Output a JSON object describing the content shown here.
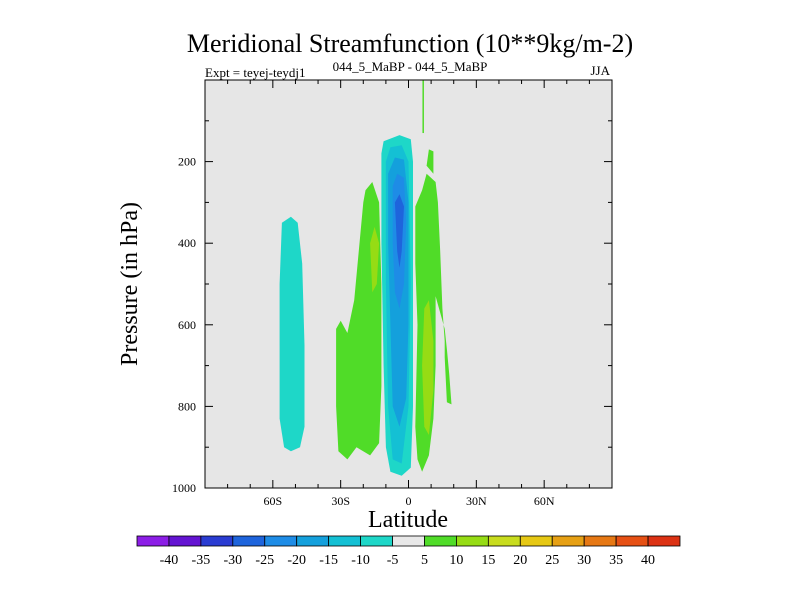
{
  "chart_data": {
    "type": "heatmap",
    "title": "Meridional Streamfunction (10**9kg/m-2)",
    "subtitle_left": "Expt = teyej-teydj1",
    "subtitle_center": "044_5_MaBP - 044_5_MaBP",
    "subtitle_right": "JJA",
    "xlabel": "Latitude",
    "ylabel": "Pressure (in hPa)",
    "xlim": [
      -90,
      90
    ],
    "ylim": [
      1000,
      0
    ],
    "xticks": [
      {
        "value": -60,
        "label": "60S"
      },
      {
        "value": -30,
        "label": "30S"
      },
      {
        "value": 0,
        "label": "0"
      },
      {
        "value": 30,
        "label": "30N"
      },
      {
        "value": 60,
        "label": "60N"
      }
    ],
    "yticks": [
      {
        "value": 200,
        "label": "200"
      },
      {
        "value": 400,
        "label": "400"
      },
      {
        "value": 600,
        "label": "600"
      },
      {
        "value": 800,
        "label": "800"
      },
      {
        "value": 1000,
        "label": "1000"
      }
    ],
    "background_color": "#e6e6e6",
    "colorbar": {
      "labels": [
        "-40",
        "-35",
        "-30",
        "-25",
        "-20",
        "-15",
        "-10",
        "-5",
        "5",
        "10",
        "15",
        "20",
        "25",
        "30",
        "35",
        "40"
      ],
      "colors": [
        "#8c1ee6",
        "#6414d2",
        "#2a3cd2",
        "#1e64dc",
        "#1e8ce6",
        "#14a0dc",
        "#14c0d4",
        "#1ed7c8",
        "#e8e8e8",
        "#50dc28",
        "#96dc14",
        "#c8dc1e",
        "#e6c814",
        "#e6a014",
        "#e67814",
        "#e65014",
        "#dc3214"
      ]
    },
    "regions": [
      {
        "name": "southern-cell",
        "color": "#1ed7c8",
        "points": [
          [
            -56,
            350
          ],
          [
            -52,
            335
          ],
          [
            -49,
            350
          ],
          [
            -47,
            450
          ],
          [
            -46,
            650
          ],
          [
            -46,
            850
          ],
          [
            -48,
            900
          ],
          [
            -52,
            910
          ],
          [
            -55,
            900
          ],
          [
            -57,
            830
          ],
          [
            -57,
            500
          ]
        ]
      },
      {
        "name": "southern-green-band",
        "color": "#50dc28",
        "points": [
          [
            -32,
            610
          ],
          [
            -30,
            590
          ],
          [
            -27,
            620
          ],
          [
            -24,
            540
          ],
          [
            -20,
            300
          ],
          [
            -19,
            270
          ],
          [
            -16,
            250
          ],
          [
            -13,
            300
          ],
          [
            -12,
            500
          ],
          [
            -12,
            750
          ],
          [
            -13,
            890
          ],
          [
            -17,
            920
          ],
          [
            -23,
            900
          ],
          [
            -27,
            930
          ],
          [
            -31,
            910
          ],
          [
            -32,
            800
          ]
        ]
      },
      {
        "name": "inner-green-band",
        "color": "#96dc14",
        "points": [
          [
            -17,
            400
          ],
          [
            -15,
            360
          ],
          [
            -13,
            400
          ],
          [
            -14,
            500
          ],
          [
            -16,
            520
          ]
        ]
      },
      {
        "name": "main-cell-outer",
        "color": "#1ed7c8",
        "points": [
          [
            -12,
            180
          ],
          [
            -11,
            150
          ],
          [
            -4,
            135
          ],
          [
            1,
            145
          ],
          [
            2,
            200
          ],
          [
            2,
            500
          ],
          [
            2,
            800
          ],
          [
            1,
            950
          ],
          [
            -3,
            970
          ],
          [
            -8,
            960
          ],
          [
            -10,
            900
          ],
          [
            -11,
            700
          ],
          [
            -12,
            400
          ]
        ]
      },
      {
        "name": "main-cell-15",
        "color": "#14c0d4",
        "points": [
          [
            -10,
            200
          ],
          [
            -8,
            165
          ],
          [
            -3,
            160
          ],
          [
            0,
            200
          ],
          [
            1,
            500
          ],
          [
            0,
            800
          ],
          [
            -3,
            940
          ],
          [
            -7,
            930
          ],
          [
            -9,
            800
          ],
          [
            -10,
            500
          ]
        ]
      },
      {
        "name": "main-cell-20",
        "color": "#14a0dc",
        "points": [
          [
            -9,
            230
          ],
          [
            -6,
            190
          ],
          [
            -2,
            195
          ],
          [
            0,
            300
          ],
          [
            0,
            600
          ],
          [
            -1,
            780
          ],
          [
            -4,
            850
          ],
          [
            -7,
            800
          ],
          [
            -8,
            600
          ],
          [
            -9,
            400
          ]
        ]
      },
      {
        "name": "main-cell-25",
        "color": "#1e8ce6",
        "points": [
          [
            -7,
            260
          ],
          [
            -5,
            230
          ],
          [
            -2,
            240
          ],
          [
            -1,
            350
          ],
          [
            -2,
            500
          ],
          [
            -4,
            560
          ],
          [
            -6,
            520
          ],
          [
            -7,
            400
          ]
        ]
      },
      {
        "name": "main-cell-30",
        "color": "#1e64dc",
        "points": [
          [
            -6,
            300
          ],
          [
            -4,
            280
          ],
          [
            -2,
            310
          ],
          [
            -3,
            420
          ],
          [
            -4,
            460
          ],
          [
            -5,
            420
          ]
        ]
      },
      {
        "name": "northern-green-band",
        "color": "#50dc28",
        "points": [
          [
            3,
            310
          ],
          [
            6,
            270
          ],
          [
            8,
            230
          ],
          [
            12,
            250
          ],
          [
            13,
            300
          ],
          [
            14,
            420
          ],
          [
            15,
            560
          ],
          [
            16,
            640
          ],
          [
            16,
            680
          ],
          [
            17,
            790
          ],
          [
            19,
            795
          ],
          [
            18,
            720
          ],
          [
            17,
            660
          ],
          [
            16,
            610
          ],
          [
            12,
            530
          ],
          [
            12,
            700
          ],
          [
            11,
            830
          ],
          [
            9,
            920
          ],
          [
            6,
            960
          ],
          [
            4,
            930
          ],
          [
            3,
            850
          ],
          [
            4,
            600
          ],
          [
            3,
            450
          ]
        ]
      },
      {
        "name": "northern-upper-patch",
        "color": "#50dc28",
        "points": [
          [
            8,
            210
          ],
          [
            9,
            170
          ],
          [
            11,
            175
          ],
          [
            11,
            230
          ]
        ]
      },
      {
        "name": "northern-inner-patch",
        "color": "#96dc14",
        "points": [
          [
            7,
            560
          ],
          [
            9,
            540
          ],
          [
            11,
            640
          ],
          [
            11,
            760
          ],
          [
            9,
            870
          ],
          [
            7,
            850
          ],
          [
            6,
            700
          ]
        ]
      }
    ],
    "spike": {
      "name": "north-spike",
      "color": "#50dc28",
      "lat": 6.5,
      "p_top": 0,
      "p_bottom": 130
    }
  }
}
